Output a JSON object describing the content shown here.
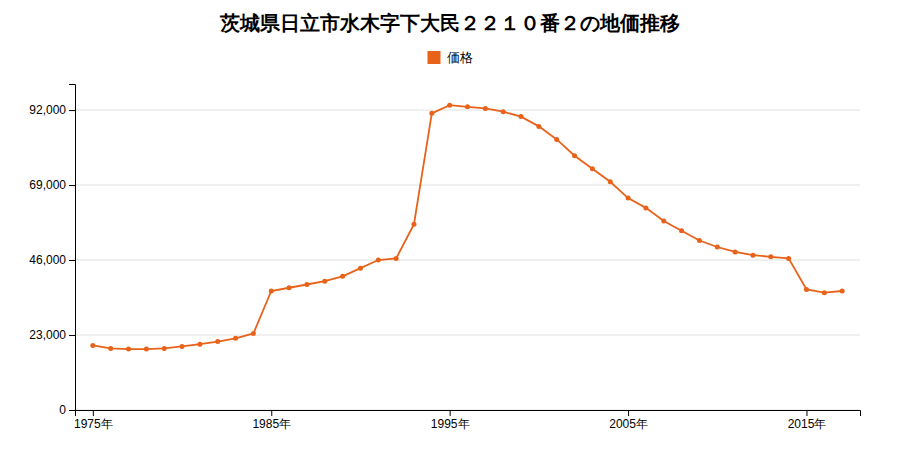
{
  "chart_data": {
    "type": "line",
    "title": "茨城県日立市水木字下大民２２１０番２の地価推移",
    "x": [
      1975,
      1976,
      1977,
      1978,
      1979,
      1980,
      1981,
      1982,
      1983,
      1984,
      1985,
      1986,
      1987,
      1988,
      1989,
      1990,
      1991,
      1992,
      1993,
      1994,
      1995,
      1996,
      1997,
      1998,
      1999,
      2000,
      2001,
      2002,
      2003,
      2004,
      2005,
      2006,
      2007,
      2008,
      2009,
      2010,
      2011,
      2012,
      2013,
      2014,
      2015,
      2016,
      2017
    ],
    "series": [
      {
        "name": "価格",
        "color": "#e8621a",
        "marker": "circle",
        "values": [
          19800,
          18900,
          18700,
          18700,
          18900,
          19500,
          20200,
          21000,
          22000,
          23500,
          36500,
          37500,
          38500,
          39500,
          41000,
          43500,
          46000,
          46500,
          57000,
          91000,
          93500,
          93000,
          92500,
          91500,
          90000,
          87000,
          83000,
          78000,
          74000,
          70000,
          65000,
          62000,
          58000,
          55000,
          52000,
          50000,
          48500,
          47500,
          47000,
          46500,
          37000,
          36000,
          36500
        ]
      }
    ],
    "xlim": [
      1974,
      2018
    ],
    "xticks": [
      {
        "value": 1975,
        "label": "1975年"
      },
      {
        "value": 1985,
        "label": "1985年"
      },
      {
        "value": 1995,
        "label": "1995年"
      },
      {
        "value": 2005,
        "label": "2005年"
      },
      {
        "value": 2015,
        "label": "2015年"
      }
    ],
    "ylim": [
      0,
      100000
    ],
    "yticks": [
      0,
      {
        "value": 23000,
        "label": "23,000"
      },
      {
        "value": 46000,
        "label": "46,000"
      },
      {
        "value": 69000,
        "label": "69,000"
      },
      {
        "value": 92000,
        "label": "92,000"
      }
    ],
    "grid": true,
    "legend": "top"
  }
}
